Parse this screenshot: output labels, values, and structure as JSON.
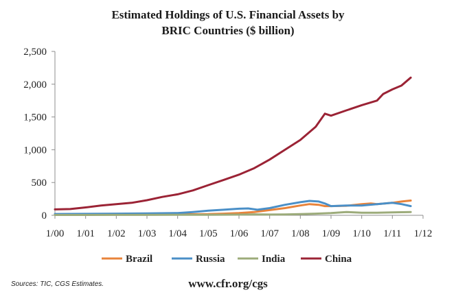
{
  "header": {
    "title_line1": "Estimated Holdings of U.S. Financial Assets by",
    "title_line2": "BRIC Countries ($ billion)"
  },
  "footer": {
    "source": "Sources: TIC, CGS Estimates.",
    "url": "www.cfr.org/cgs"
  },
  "chart_data": {
    "type": "line",
    "title": "Estimated Holdings of U.S. Financial Assets by BRIC Countries ($ billion)",
    "xlabel": "",
    "ylabel": "",
    "ylim": [
      0,
      2500
    ],
    "yticks": [
      0,
      500,
      1000,
      1500,
      2000,
      2500
    ],
    "ytick_labels": [
      "0",
      "500",
      "1,000",
      "1,500",
      "2,000",
      "2,500"
    ],
    "xlim": [
      2000.0,
      2012.0
    ],
    "xticks": [
      2000,
      2001,
      2002,
      2003,
      2004,
      2005,
      2006,
      2007,
      2008,
      2009,
      2010,
      2011,
      2012
    ],
    "xtick_labels": [
      "1/00",
      "1/01",
      "1/02",
      "1/03",
      "1/04",
      "1/05",
      "1/06",
      "1/07",
      "1/08",
      "1/09",
      "1/10",
      "1/11",
      "1/12"
    ],
    "grid": false,
    "legend_position": "bottom",
    "series": [
      {
        "name": "Brazil",
        "color": "#e8833a",
        "points": [
          [
            2000.0,
            10
          ],
          [
            2001.0,
            10
          ],
          [
            2002.0,
            12
          ],
          [
            2003.0,
            14
          ],
          [
            2004.0,
            15
          ],
          [
            2005.0,
            18
          ],
          [
            2005.5,
            25
          ],
          [
            2006.0,
            35
          ],
          [
            2006.5,
            50
          ],
          [
            2007.0,
            80
          ],
          [
            2007.5,
            110
          ],
          [
            2008.0,
            150
          ],
          [
            2008.3,
            170
          ],
          [
            2008.6,
            160
          ],
          [
            2008.8,
            140
          ],
          [
            2009.0,
            140
          ],
          [
            2009.5,
            145
          ],
          [
            2010.0,
            170
          ],
          [
            2010.3,
            180
          ],
          [
            2010.5,
            170
          ],
          [
            2011.0,
            190
          ],
          [
            2011.3,
            210
          ],
          [
            2011.6,
            225
          ]
        ]
      },
      {
        "name": "Russia",
        "color": "#4a8fc7",
        "points": [
          [
            2000.0,
            20
          ],
          [
            2001.0,
            22
          ],
          [
            2002.0,
            25
          ],
          [
            2003.0,
            28
          ],
          [
            2004.0,
            35
          ],
          [
            2004.5,
            50
          ],
          [
            2005.0,
            70
          ],
          [
            2005.5,
            85
          ],
          [
            2006.0,
            100
          ],
          [
            2006.3,
            105
          ],
          [
            2006.6,
            85
          ],
          [
            2007.0,
            110
          ],
          [
            2007.5,
            160
          ],
          [
            2008.0,
            200
          ],
          [
            2008.3,
            220
          ],
          [
            2008.6,
            210
          ],
          [
            2008.8,
            180
          ],
          [
            2009.0,
            140
          ],
          [
            2009.5,
            150
          ],
          [
            2010.0,
            150
          ],
          [
            2010.5,
            170
          ],
          [
            2011.0,
            190
          ],
          [
            2011.3,
            170
          ],
          [
            2011.6,
            140
          ]
        ]
      },
      {
        "name": "India",
        "color": "#9cab7a",
        "points": [
          [
            2000.0,
            5
          ],
          [
            2001.0,
            5
          ],
          [
            2002.0,
            6
          ],
          [
            2003.0,
            6
          ],
          [
            2004.0,
            7
          ],
          [
            2005.0,
            8
          ],
          [
            2006.0,
            10
          ],
          [
            2006.5,
            15
          ],
          [
            2007.0,
            12
          ],
          [
            2007.5,
            14
          ],
          [
            2008.0,
            18
          ],
          [
            2008.5,
            25
          ],
          [
            2009.0,
            35
          ],
          [
            2009.5,
            50
          ],
          [
            2010.0,
            40
          ],
          [
            2010.5,
            40
          ],
          [
            2011.0,
            45
          ],
          [
            2011.6,
            50
          ]
        ]
      },
      {
        "name": "China",
        "color": "#9b2335",
        "points": [
          [
            2000.0,
            90
          ],
          [
            2000.5,
            95
          ],
          [
            2001.0,
            120
          ],
          [
            2001.5,
            150
          ],
          [
            2002.0,
            170
          ],
          [
            2002.5,
            190
          ],
          [
            2003.0,
            230
          ],
          [
            2003.5,
            280
          ],
          [
            2004.0,
            320
          ],
          [
            2004.5,
            380
          ],
          [
            2005.0,
            460
          ],
          [
            2005.5,
            540
          ],
          [
            2006.0,
            620
          ],
          [
            2006.5,
            720
          ],
          [
            2007.0,
            850
          ],
          [
            2007.5,
            1000
          ],
          [
            2008.0,
            1150
          ],
          [
            2008.5,
            1350
          ],
          [
            2008.8,
            1550
          ],
          [
            2009.0,
            1520
          ],
          [
            2009.5,
            1600
          ],
          [
            2010.0,
            1680
          ],
          [
            2010.5,
            1750
          ],
          [
            2010.7,
            1850
          ],
          [
            2011.0,
            1920
          ],
          [
            2011.3,
            1980
          ],
          [
            2011.6,
            2100
          ]
        ]
      }
    ]
  }
}
